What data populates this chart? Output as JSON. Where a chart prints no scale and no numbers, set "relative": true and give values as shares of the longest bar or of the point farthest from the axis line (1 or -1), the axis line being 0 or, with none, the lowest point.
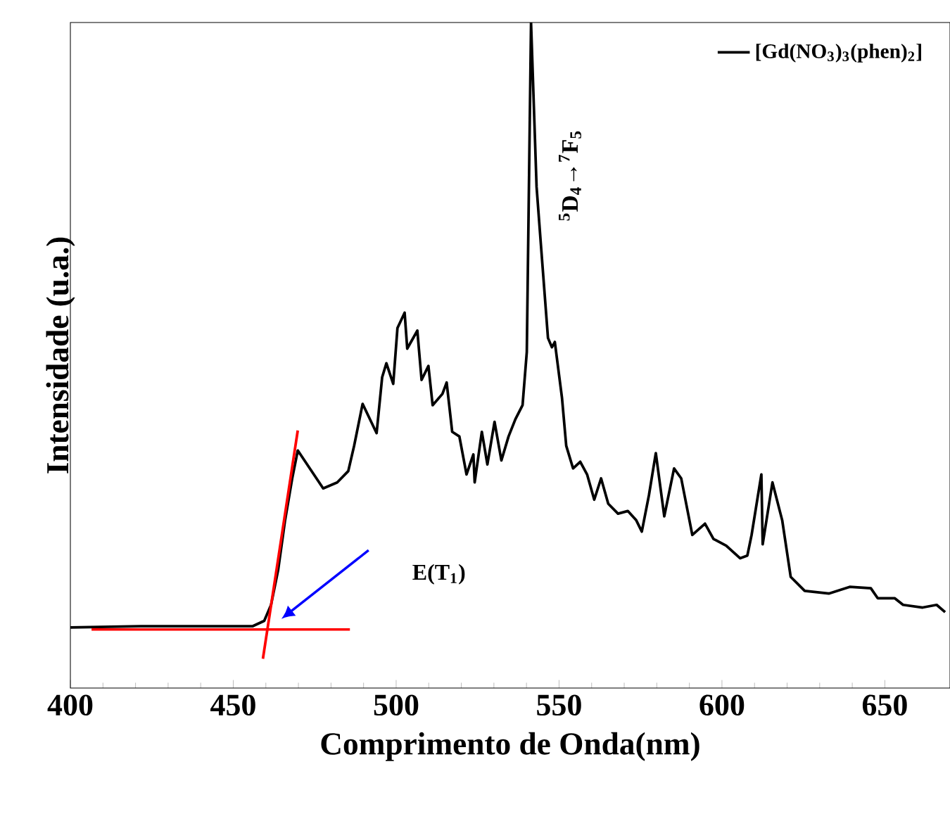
{
  "chart_data": {
    "type": "line",
    "xlabel": "Comprimento de Onda(nm)",
    "ylabel": "Intensidade (u.a.)",
    "relative": true,
    "xlim": [
      400,
      670
    ],
    "xticks": [
      400,
      450,
      500,
      550,
      600,
      650
    ],
    "legend": "top right",
    "series": [
      {
        "name": "[Gd(NO$_{3}$)$_{3}$(phen)$_{2}$]",
        "color": "#000000",
        "x": [
          400,
          421.6,
          443.1,
          456.0,
          459.5,
          461.6,
          463.8,
          465.9,
          468.1,
          469.8,
          477.6,
          481.9,
          485.3,
          487.1,
          489.7,
          494.0,
          495.7,
          497.0,
          499.1,
          500.4,
          502.6,
          503.4,
          506.5,
          507.8,
          509.9,
          511.2,
          514.2,
          515.5,
          517.2,
          519.4,
          521.6,
          523.7,
          524.1,
          526.3,
          528.0,
          530.2,
          532.3,
          534.5,
          536.6,
          538.8,
          540.1,
          541.4,
          543.1,
          544.4,
          546.6,
          547.8,
          548.7,
          550.9,
          552.2,
          554.3,
          556.5,
          558.6,
          560.8,
          562.9,
          565.1,
          568.1,
          571.1,
          573.7,
          575.4,
          577.6,
          579.7,
          582.3,
          585.3,
          587.5,
          590.9,
          594.8,
          597.4,
          601.3,
          605.6,
          607.8,
          609.1,
          612.1,
          612.5,
          615.5,
          618.5,
          621.1,
          625.4,
          632.8,
          639.2,
          645.7,
          647.8,
          653.0,
          655.6,
          661.6,
          665.9,
          668.5
        ],
        "values": [
          0.091,
          0.093,
          0.093,
          0.093,
          0.101,
          0.125,
          0.178,
          0.252,
          0.315,
          0.357,
          0.3,
          0.309,
          0.326,
          0.364,
          0.427,
          0.383,
          0.467,
          0.488,
          0.457,
          0.541,
          0.564,
          0.51,
          0.537,
          0.463,
          0.484,
          0.425,
          0.442,
          0.459,
          0.385,
          0.378,
          0.321,
          0.351,
          0.309,
          0.385,
          0.336,
          0.4,
          0.342,
          0.378,
          0.404,
          0.425,
          0.505,
          1.0,
          0.753,
          0.668,
          0.526,
          0.512,
          0.52,
          0.436,
          0.364,
          0.33,
          0.34,
          0.321,
          0.283,
          0.315,
          0.277,
          0.262,
          0.266,
          0.252,
          0.235,
          0.29,
          0.353,
          0.258,
          0.33,
          0.315,
          0.23,
          0.247,
          0.224,
          0.214,
          0.195,
          0.199,
          0.23,
          0.321,
          0.216,
          0.309,
          0.252,
          0.167,
          0.146,
          0.142,
          0.152,
          0.15,
          0.135,
          0.135,
          0.125,
          0.121,
          0.125,
          0.114
        ]
      },
      {
        "color": "#ff0000",
        "x": [
          459.1,
          469.8
        ],
        "values": [
          0.044,
          0.387
        ]
      },
      {
        "color": "#ff0000",
        "x": [
          406.5,
          485.8
        ],
        "values": [
          0.088,
          0.088
        ]
      }
    ],
    "annotations": [
      "$^{5}$D$_{4}$→$^{7}$F$_{5}$",
      "E(T$_{1}$)"
    ]
  }
}
